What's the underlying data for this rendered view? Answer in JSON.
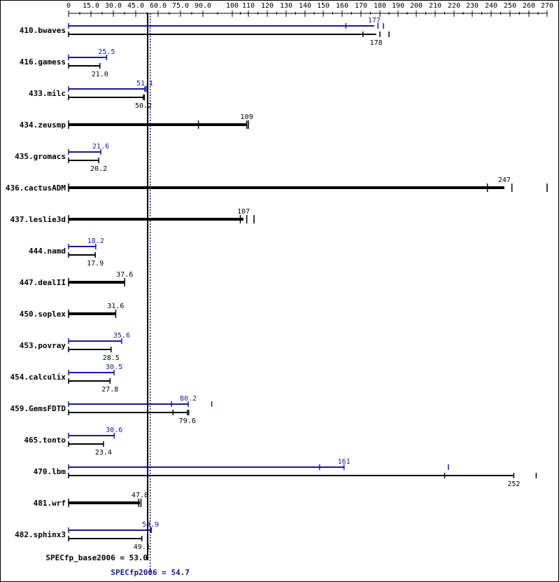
{
  "chart_data": {
    "type": "bar",
    "orientation": "horizontal",
    "x_ticks": [
      "0",
      "15.0",
      "30.0",
      "45.0",
      "60.0",
      "75.0",
      "90.0",
      "100",
      "110",
      "120",
      "130",
      "140",
      "150",
      "160",
      "170",
      "180",
      "190",
      "200",
      "210",
      "220",
      "230",
      "240",
      "250",
      "260",
      "270"
    ],
    "x_tick_values": [
      0,
      15,
      30,
      45,
      60,
      75,
      90,
      100,
      110,
      120,
      130,
      140,
      150,
      160,
      170,
      180,
      190,
      200,
      210,
      220,
      230,
      240,
      250,
      260,
      270
    ],
    "xlim": [
      0,
      270
    ],
    "axis_position": "top",
    "series_colors": {
      "peak": "#1a1a8c",
      "base": "#000000"
    },
    "benchmarks": [
      {
        "name": "410.bwaves",
        "peak": 177,
        "peak_label": "177",
        "peak_runs": [
          182,
          162,
          179
        ],
        "base": 178,
        "base_label": "178",
        "base_runs": [
          185,
          171,
          180
        ]
      },
      {
        "name": "416.gamess",
        "peak": 25.5,
        "peak_label": "25.5",
        "peak_runs": [
          25.5
        ],
        "base": 21.0,
        "base_label": "21.0",
        "base_runs": [
          21.0
        ]
      },
      {
        "name": "433.milc",
        "peak": 51.1,
        "peak_label": "51.1",
        "peak_runs": [
          52.0,
          51.1
        ],
        "base": 50.2,
        "base_label": "50.2",
        "base_runs": [
          50.8,
          50.2
        ]
      },
      {
        "name": "434.zeusmp",
        "peak": 109,
        "peak_label": "109",
        "base": 109,
        "base_label": "109",
        "base_runs": [
          110,
          87,
          109
        ],
        "combined": true
      },
      {
        "name": "435.gromacs",
        "peak": 21.6,
        "peak_label": "21.6",
        "peak_runs": [
          21.6
        ],
        "base": 20.2,
        "base_label": "20.2",
        "base_runs": [
          20.2
        ]
      },
      {
        "name": "436.cactusADM",
        "peak": 247,
        "peak_label": "247",
        "base": 247,
        "base_label": "247",
        "base_runs": [
          271,
          238,
          251
        ],
        "combined": true
      },
      {
        "name": "437.leslie3d",
        "peak": 107,
        "peak_label": "107",
        "base": 107,
        "base_label": "107",
        "base_runs": [
          113,
          105,
          109
        ],
        "combined": true
      },
      {
        "name": "444.namd",
        "peak": 18.2,
        "peak_label": "18.2",
        "peak_runs": [
          18.2
        ],
        "base": 17.9,
        "base_label": "17.9",
        "base_runs": [
          17.9
        ]
      },
      {
        "name": "447.dealII",
        "peak": 37.6,
        "peak_label": "37.6",
        "base": 37.6,
        "base_label": "37.6",
        "base_runs": [
          37.6
        ],
        "combined": true
      },
      {
        "name": "450.soplex",
        "peak": 31.6,
        "peak_label": "31.6",
        "base": 31.6,
        "base_label": "31.6",
        "base_runs": [
          31.6
        ],
        "combined": true
      },
      {
        "name": "453.povray",
        "peak": 35.6,
        "peak_label": "35.6",
        "peak_runs": [
          35.6
        ],
        "base": 28.5,
        "base_label": "28.5",
        "base_runs": [
          28.5
        ]
      },
      {
        "name": "454.calculix",
        "peak": 30.5,
        "peak_label": "30.5",
        "peak_runs": [
          30.5
        ],
        "base": 27.8,
        "base_label": "27.8",
        "base_runs": [
          27.8
        ]
      },
      {
        "name": "459.GemsFDTD",
        "peak": 80.2,
        "peak_label": "80.2",
        "peak_runs": [
          93,
          69,
          80.2
        ],
        "base": 79.6,
        "base_label": "79.6",
        "base_runs": [
          80.5,
          70,
          79.6
        ]
      },
      {
        "name": "465.tonto",
        "peak": 30.6,
        "peak_label": "30.6",
        "peak_runs": [
          30.6
        ],
        "base": 23.4,
        "base_label": "23.4",
        "base_runs": [
          23.4
        ]
      },
      {
        "name": "470.lbm",
        "peak": 161,
        "peak_label": "161",
        "peak_runs": [
          217,
          148,
          161
        ],
        "base": 252,
        "base_label": "252",
        "base_runs": [
          264,
          215,
          252
        ]
      },
      {
        "name": "481.wrf",
        "peak": 47.8,
        "peak_label": "47.8",
        "base": 47.8,
        "base_label": "47.8",
        "base_runs": [
          48.5,
          47.0
        ],
        "combined": true
      },
      {
        "name": "482.sphinx3",
        "peak": 54.9,
        "peak_label": "54.9",
        "peak_runs": [
          55.5,
          54.9
        ],
        "base": 49.1,
        "base_label": "49.1",
        "base_runs": [
          49.1
        ]
      }
    ],
    "summary": {
      "base_label": "SPECfp_base2006 = 53.0",
      "base_value": 53.0,
      "peak_label": "SPECfp2006 = 54.7",
      "peak_value": 54.7
    }
  }
}
